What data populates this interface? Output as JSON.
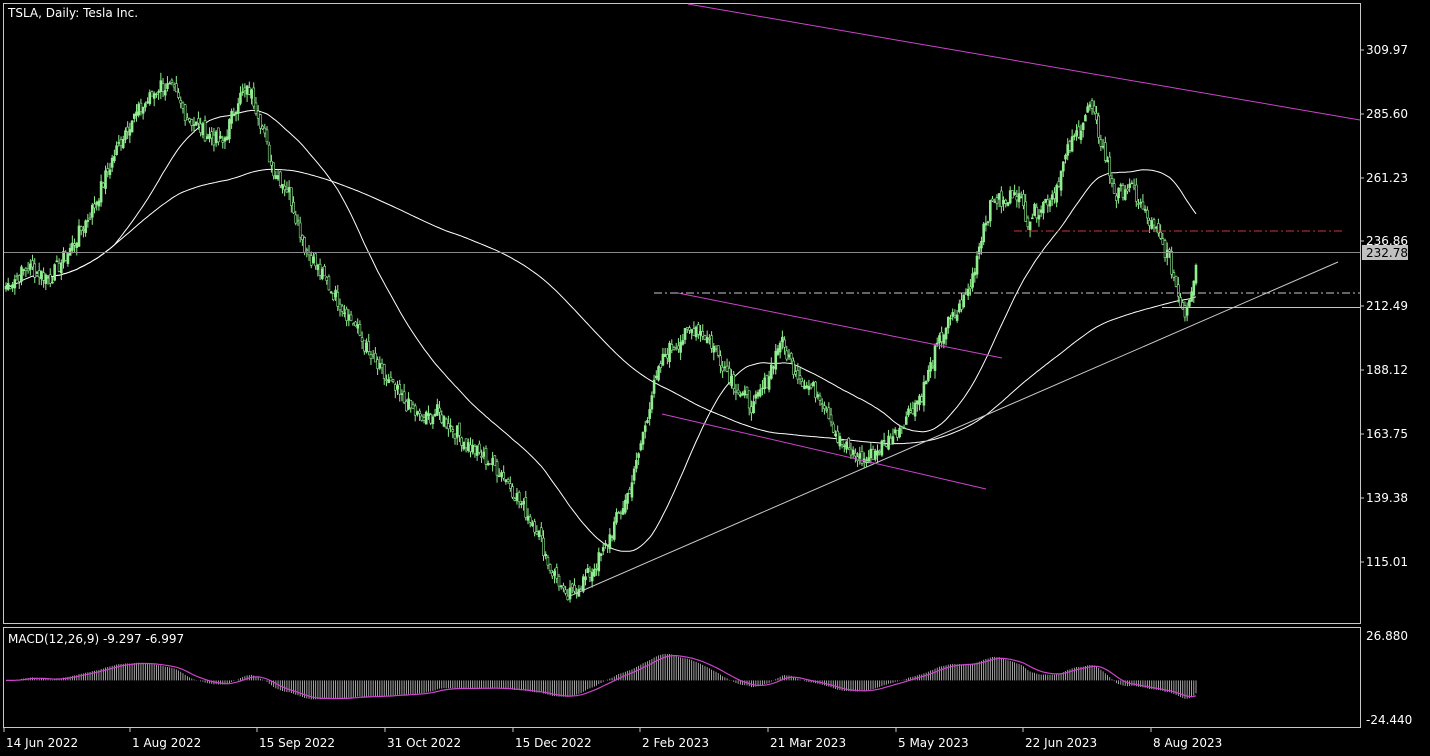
{
  "header": {
    "symbol_title": "TSLA, Daily:  Tesla Inc."
  },
  "colors": {
    "background": "#000000",
    "frame": "#c8c8c8",
    "candle_bull": "#90ee90",
    "candle_bear": "#90ee90",
    "ma": "#ffffff",
    "trendline": "#c8c8c8",
    "channel": "#cc44cc",
    "resistance_dash": "#cc3333",
    "current_price_tag_bg": "#c0c0c0",
    "macd_hist": "#c8c8c8",
    "macd_signal": "#cc44cc"
  },
  "chart_data": [
    {
      "type": "candlestick",
      "title": "TSLA, Daily:  Tesla Inc.",
      "price_ticks": [
        "309.97",
        "285.60",
        "261.23",
        "236.86",
        "212.49",
        "188.12",
        "163.75",
        "139.38",
        "115.01"
      ],
      "current_price": "232.78",
      "ylim": [
        100.0,
        330.0
      ],
      "date_labels": [
        "14 Jun 2022",
        "1 Aug 2022",
        "15 Sep 2022",
        "31 Oct 2022",
        "15 Dec 2022",
        "2 Feb 2023",
        "21 Mar 2023",
        "5 May 2023",
        "22 Jun 2023",
        "8 Aug 2023"
      ],
      "grid": false,
      "price_path": [
        [
          0,
          225
        ],
        [
          10,
          232
        ],
        [
          20,
          228
        ],
        [
          30,
          240
        ],
        [
          40,
          255
        ],
        [
          48,
          272
        ],
        [
          55,
          285
        ],
        [
          62,
          292
        ],
        [
          70,
          300
        ],
        [
          75,
          298
        ],
        [
          82,
          288
        ],
        [
          90,
          282
        ],
        [
          98,
          278
        ],
        [
          105,
          295
        ],
        [
          110,
          298
        ],
        [
          114,
          290
        ],
        [
          120,
          270
        ],
        [
          128,
          260
        ],
        [
          135,
          240
        ],
        [
          142,
          230
        ],
        [
          150,
          220
        ],
        [
          158,
          210
        ],
        [
          165,
          198
        ],
        [
          172,
          190
        ],
        [
          180,
          182
        ],
        [
          188,
          175
        ],
        [
          195,
          178
        ],
        [
          202,
          172
        ],
        [
          210,
          165
        ],
        [
          218,
          160
        ],
        [
          225,
          155
        ],
        [
          232,
          145
        ],
        [
          240,
          135
        ],
        [
          246,
          120
        ],
        [
          250,
          115
        ],
        [
          253,
          108
        ],
        [
          258,
          113
        ],
        [
          264,
          118
        ],
        [
          270,
          126
        ],
        [
          276,
          138
        ],
        [
          280,
          145
        ],
        [
          284,
          155
        ],
        [
          288,
          170
        ],
        [
          292,
          185
        ],
        [
          298,
          200
        ],
        [
          305,
          205
        ],
        [
          312,
          210
        ],
        [
          318,
          205
        ],
        [
          325,
          195
        ],
        [
          332,
          185
        ],
        [
          338,
          180
        ],
        [
          344,
          190
        ],
        [
          350,
          205
        ],
        [
          356,
          195
        ],
        [
          362,
          188
        ],
        [
          368,
          185
        ],
        [
          372,
          178
        ],
        [
          376,
          168
        ],
        [
          382,
          163
        ],
        [
          388,
          160
        ],
        [
          395,
          165
        ],
        [
          402,
          170
        ],
        [
          408,
          178
        ],
        [
          414,
          185
        ],
        [
          420,
          200
        ],
        [
          425,
          210
        ],
        [
          430,
          215
        ],
        [
          436,
          225
        ],
        [
          442,
          248
        ],
        [
          447,
          258
        ],
        [
          452,
          255
        ],
        [
          456,
          262
        ],
        [
          462,
          250
        ],
        [
          468,
          255
        ],
        [
          474,
          260
        ],
        [
          480,
          275
        ],
        [
          486,
          285
        ],
        [
          490,
          292
        ],
        [
          494,
          282
        ],
        [
          498,
          270
        ],
        [
          502,
          258
        ],
        [
          506,
          262
        ],
        [
          510,
          260
        ],
        [
          516,
          250
        ],
        [
          520,
          245
        ],
        [
          526,
          235
        ],
        [
          530,
          222
        ],
        [
          533,
          215
        ],
        [
          536,
          225
        ],
        [
          538,
          232.78
        ]
      ]
    },
    {
      "type": "line",
      "title": "MACD(12,26,9) -9.297 -6.997",
      "indicator": "MACD",
      "params": "12,26,9",
      "macd": -9.297,
      "signal": -6.997,
      "ticks": [
        "26.880",
        "-24.440"
      ],
      "ylim": [
        -27.0,
        30.0
      ]
    }
  ]
}
